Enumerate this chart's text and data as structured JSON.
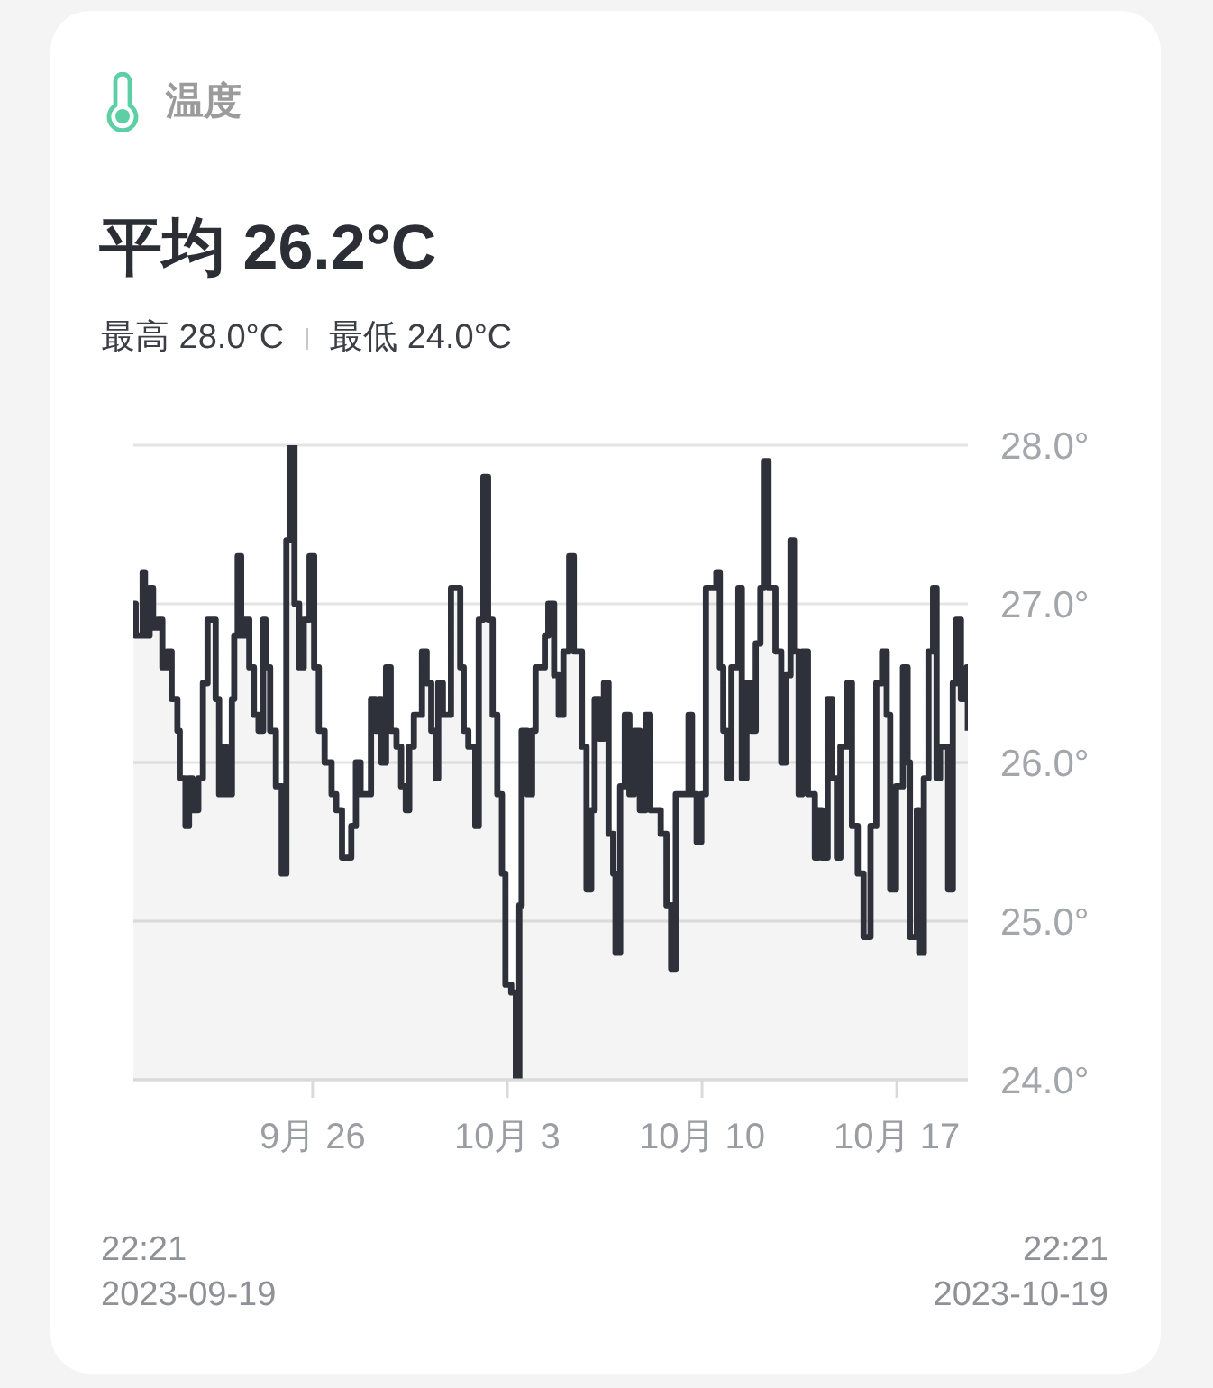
{
  "chart_data": {
    "type": "step",
    "title": "温度",
    "subtitle": "平均 26.2°C",
    "annotations": [
      "最高 28.0°C",
      "最低 24.0°C",
      "22:21\n2023-09-19",
      "22:21\n2023-10-19"
    ],
    "x": [
      "2023-09-19T22:21",
      "2023-09-20T00:21",
      "2023-09-20T06:21",
      "2023-09-20T08:21",
      "2023-09-20T12:21",
      "2023-09-20T15:21",
      "2023-09-20T19:21",
      "2023-09-20T23:21",
      "2023-09-21T03:21",
      "2023-09-21T07:21",
      "2023-09-21T12:21",
      "2023-09-21T14:21",
      "2023-09-21T19:21",
      "2023-09-21T22:21",
      "2023-09-22T01:21",
      "2023-09-22T06:21",
      "2023-09-22T10:21",
      "2023-09-22T14:21",
      "2023-09-22T21:21",
      "2023-09-23T00:21",
      "2023-09-23T03:21",
      "2023-09-23T06:21",
      "2023-09-23T11:21",
      "2023-09-23T13:21",
      "2023-09-23T16:21",
      "2023-09-23T19:21",
      "2023-09-23T22:21",
      "2023-09-24T02:21",
      "2023-09-24T06:21",
      "2023-09-24T10:21",
      "2023-09-24T14:21",
      "2023-09-24T16:21",
      "2023-09-24T20:21",
      "2023-09-25T01:21",
      "2023-09-25T06:21",
      "2023-09-25T10:21",
      "2023-09-25T13:21",
      "2023-09-25T17:21",
      "2023-09-25T21:21",
      "2023-09-26T01:21",
      "2023-09-26T06:21",
      "2023-09-26T10:21",
      "2023-09-26T14:21",
      "2023-09-26T19:21",
      "2023-09-27T01:21",
      "2023-09-27T05:21",
      "2023-09-27T10:21",
      "2023-09-27T16:21",
      "2023-09-27T18:21",
      "2023-09-27T22:21",
      "2023-09-28T02:21",
      "2023-09-28T11:21",
      "2023-09-28T15:21",
      "2023-09-28T18:21",
      "2023-09-28T20:21",
      "2023-09-29T00:21",
      "2023-09-29T04:21",
      "2023-09-29T09:21",
      "2023-09-29T13:21",
      "2023-09-29T17:21",
      "2023-09-29T20:21",
      "2023-09-30T00:21",
      "2023-09-30T07:21",
      "2023-09-30T11:21",
      "2023-09-30T15:21",
      "2023-09-30T19:21",
      "2023-09-30T21:21",
      "2023-10-01T01:21",
      "2023-10-01T08:21",
      "2023-10-01T13:21",
      "2023-10-01T16:21",
      "2023-10-01T19:21",
      "2023-10-01T23:21",
      "2023-10-02T05:21",
      "2023-10-02T08:21",
      "2023-10-02T12:21",
      "2023-10-02T16:21",
      "2023-10-02T20:21",
      "2023-10-03T00:21",
      "2023-10-03T04:21",
      "2023-10-03T07:21",
      "2023-10-03T12:21",
      "2023-10-03T16:21",
      "2023-10-03T19:21",
      "2023-10-03T21:21",
      "2023-10-04T02:21",
      "2023-10-04T06:21",
      "2023-10-04T09:21",
      "2023-10-04T17:21",
      "2023-10-04T20:21",
      "2023-10-05T01:21",
      "2023-10-05T05:21",
      "2023-10-05T09:21",
      "2023-10-05T14:21",
      "2023-10-05T18:21",
      "2023-10-05T22:21",
      "2023-10-06T01:21",
      "2023-10-06T05:21",
      "2023-10-06T09:21",
      "2023-10-06T12:21",
      "2023-10-06T16:21",
      "2023-10-06T20:21",
      "2023-10-07T00:21",
      "2023-10-07T04:21",
      "2023-10-07T06:21",
      "2023-10-07T10:21",
      "2023-10-07T14:21",
      "2023-10-07T18:21",
      "2023-10-07T22:21",
      "2023-10-08T03:21",
      "2023-10-08T08:21",
      "2023-10-08T12:21",
      "2023-10-08T21:21",
      "2023-10-09T02:21",
      "2023-10-09T06:21",
      "2023-10-09T10:21",
      "2023-10-09T21:21",
      "2023-10-10T00:21",
      "2023-10-10T04:21",
      "2023-10-10T08:21",
      "2023-10-10T12:21",
      "2023-10-10T21:21",
      "2023-10-11T00:21",
      "2023-10-11T03:21",
      "2023-10-11T06:21",
      "2023-10-11T10:21",
      "2023-10-11T16:21",
      "2023-10-11T19:21",
      "2023-10-11T23:21",
      "2023-10-12T03:21",
      "2023-10-12T07:21",
      "2023-10-12T11:21",
      "2023-10-12T14:21",
      "2023-10-12T18:21",
      "2023-10-13T00:21",
      "2023-10-13T05:21",
      "2023-10-13T09:21",
      "2023-10-13T13:21",
      "2023-10-13T16:21",
      "2023-10-13T20:21",
      "2023-10-13T23:21",
      "2023-10-14T04:21",
      "2023-10-14T10:21",
      "2023-10-14T13:21",
      "2023-10-14T16:21",
      "2023-10-14T21:21",
      "2023-10-15T01:21",
      "2023-10-15T05:21",
      "2023-10-15T08:21",
      "2023-10-15T14:21",
      "2023-10-15T18:21",
      "2023-10-15T23:21",
      "2023-10-16T04:21",
      "2023-10-16T10:21",
      "2023-10-16T15:21",
      "2023-10-16T20:21",
      "2023-10-17T00:21",
      "2023-10-17T03:21",
      "2023-10-17T08:21",
      "2023-10-17T14:21",
      "2023-10-17T18:21",
      "2023-10-17T20:21",
      "2023-10-18T02:21",
      "2023-10-18T04:21",
      "2023-10-18T08:21",
      "2023-10-18T12:21",
      "2023-10-18T16:21",
      "2023-10-18T19:21",
      "2023-10-18T22:21",
      "2023-10-19T05:21",
      "2023-10-19T09:21",
      "2023-10-19T12:21",
      "2023-10-19T16:21",
      "2023-10-19T21:21",
      "2023-10-19T22:21"
    ],
    "values": [
      27.0,
      26.8,
      27.2,
      26.8,
      27.1,
      26.85,
      26.9,
      26.6,
      26.7,
      26.4,
      26.2,
      25.9,
      25.6,
      25.9,
      25.7,
      25.9,
      26.5,
      26.9,
      26.4,
      25.8,
      26.1,
      25.8,
      26.4,
      26.8,
      27.3,
      26.8,
      26.9,
      26.6,
      26.3,
      26.2,
      26.9,
      26.6,
      26.2,
      25.85,
      25.3,
      27.4,
      28.0,
      27.0,
      26.6,
      26.9,
      27.3,
      26.6,
      26.2,
      26.0,
      25.8,
      25.7,
      25.4,
      25.4,
      25.6,
      26.0,
      25.8,
      26.4,
      26.2,
      26.4,
      26.0,
      26.6,
      26.2,
      26.1,
      25.85,
      25.7,
      26.1,
      26.3,
      26.7,
      26.5,
      26.2,
      25.9,
      26.5,
      26.3,
      27.1,
      27.1,
      26.6,
      26.2,
      26.1,
      25.6,
      26.9,
      27.8,
      26.9,
      26.3,
      25.8,
      25.3,
      24.6,
      24.55,
      24.0,
      25.1,
      26.2,
      25.8,
      26.2,
      26.6,
      26.8,
      27.0,
      26.55,
      26.3,
      26.7,
      27.3,
      26.7,
      26.7,
      26.1,
      25.2,
      25.7,
      26.4,
      26.15,
      26.5,
      25.55,
      25.3,
      24.8,
      25.85,
      26.3,
      25.8,
      26.2,
      25.7,
      26.3,
      25.7,
      25.55,
      25.1,
      24.7,
      25.8,
      26.3,
      25.8,
      25.5,
      25.8,
      27.1,
      27.2,
      26.6,
      26.2,
      25.9,
      26.6,
      27.1,
      25.9,
      26.5,
      26.2,
      26.75,
      27.1,
      27.9,
      27.1,
      26.7,
      26.0,
      26.55,
      27.4,
      26.7,
      25.8,
      26.7,
      25.8,
      25.4,
      25.7,
      25.4,
      26.4,
      25.9,
      25.4,
      26.1,
      26.5,
      25.6,
      25.3,
      24.9,
      25.6,
      26.5,
      26.7,
      26.3,
      25.2,
      25.85,
      26.6,
      26.0,
      24.9,
      25.7,
      24.8,
      25.9,
      26.7,
      27.1,
      25.9,
      26.1,
      25.2,
      26.5,
      26.9,
      26.4,
      26.6,
      26.2
    ],
    "color": "#2e303a",
    "xlim": [
      "2023-09-19T22:21",
      "2023-10-19T22:21"
    ],
    "xticks": [
      {
        "value": "2023-09-26T09:00",
        "label": "9月 26"
      },
      {
        "value": "2023-10-03T09:00",
        "label": "10月 3"
      },
      {
        "value": "2023-10-10T09:00",
        "label": "10月 10"
      },
      {
        "value": "2023-10-17T09:00",
        "label": "10月 17"
      }
    ],
    "ylim": [
      24,
      28
    ],
    "yticks": [
      {
        "value": 24,
        "label": "24.0°"
      },
      {
        "value": 25,
        "label": "25.0°"
      },
      {
        "value": 26,
        "label": "26.0°"
      },
      {
        "value": 27,
        "label": "27.0°"
      },
      {
        "value": 28,
        "label": "28.0°"
      }
    ],
    "grid": "y"
  }
}
